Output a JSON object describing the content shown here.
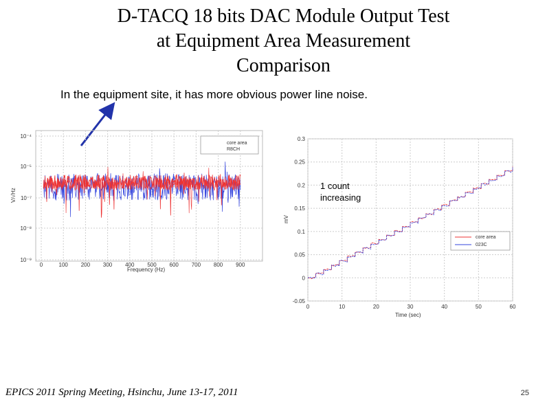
{
  "slide": {
    "title_lines": [
      "D-TACQ 18 bits DAC Module Output Test",
      "at Equipment Area Measurement",
      "Comparison"
    ],
    "subtitle": "In the equipment site, it has more obvious power line noise.",
    "callout_lines": [
      "1 count",
      "increasing"
    ],
    "footer": "EPICS 2011 Spring Meeting, Hsinchu, June 13-17, 2011",
    "page_number": "25",
    "arrow_color": "#2233aa"
  },
  "chart_data": [
    {
      "type": "line",
      "xlabel": "Frequency (Hz)",
      "ylabel": "V/√Hz",
      "xlim": [
        0,
        1000
      ],
      "x_ticks": [
        "0",
        "100",
        "200",
        "300",
        "400",
        "500",
        "600",
        "700",
        "800",
        "900"
      ],
      "y_scale": "log",
      "y_ticks": [
        "10⁻⁴",
        "10⁻⁵",
        "10⁻⁷",
        "10⁻⁸",
        "10⁻⁹"
      ],
      "legend": [
        "core area",
        "R8CH"
      ],
      "legend_position": "top-right",
      "colors": [
        "#3344dd",
        "#ee3333"
      ]
    },
    {
      "type": "line",
      "xlabel": "Time (sec)",
      "ylabel": "mV",
      "xlim": [
        0,
        60
      ],
      "ylim": [
        -0.05,
        0.3
      ],
      "x_ticks": [
        "0",
        "10",
        "20",
        "30",
        "40",
        "50",
        "60"
      ],
      "y_ticks": [
        "0.3",
        "0.25",
        "0.2",
        "0.15",
        "0.1",
        "0.05",
        "0",
        "-0.05"
      ],
      "legend": [
        "core area",
        "023C"
      ],
      "legend_position": "right",
      "colors": [
        "#ee3333",
        "#3344dd"
      ],
      "series": [
        {
          "name": "core area",
          "x": [
            0,
            5,
            10,
            15,
            20,
            25,
            30,
            35,
            40,
            45,
            50,
            55,
            60
          ],
          "y": [
            0.0,
            0.02,
            0.04,
            0.06,
            0.08,
            0.1,
            0.12,
            0.14,
            0.16,
            0.18,
            0.2,
            0.22,
            0.24
          ]
        },
        {
          "name": "023C",
          "x": [
            0,
            5,
            10,
            15,
            20,
            25,
            30,
            35,
            40,
            45,
            50,
            55,
            60
          ],
          "y": [
            0.0,
            0.019,
            0.039,
            0.059,
            0.079,
            0.099,
            0.119,
            0.139,
            0.159,
            0.179,
            0.199,
            0.219,
            0.239
          ]
        }
      ]
    }
  ]
}
